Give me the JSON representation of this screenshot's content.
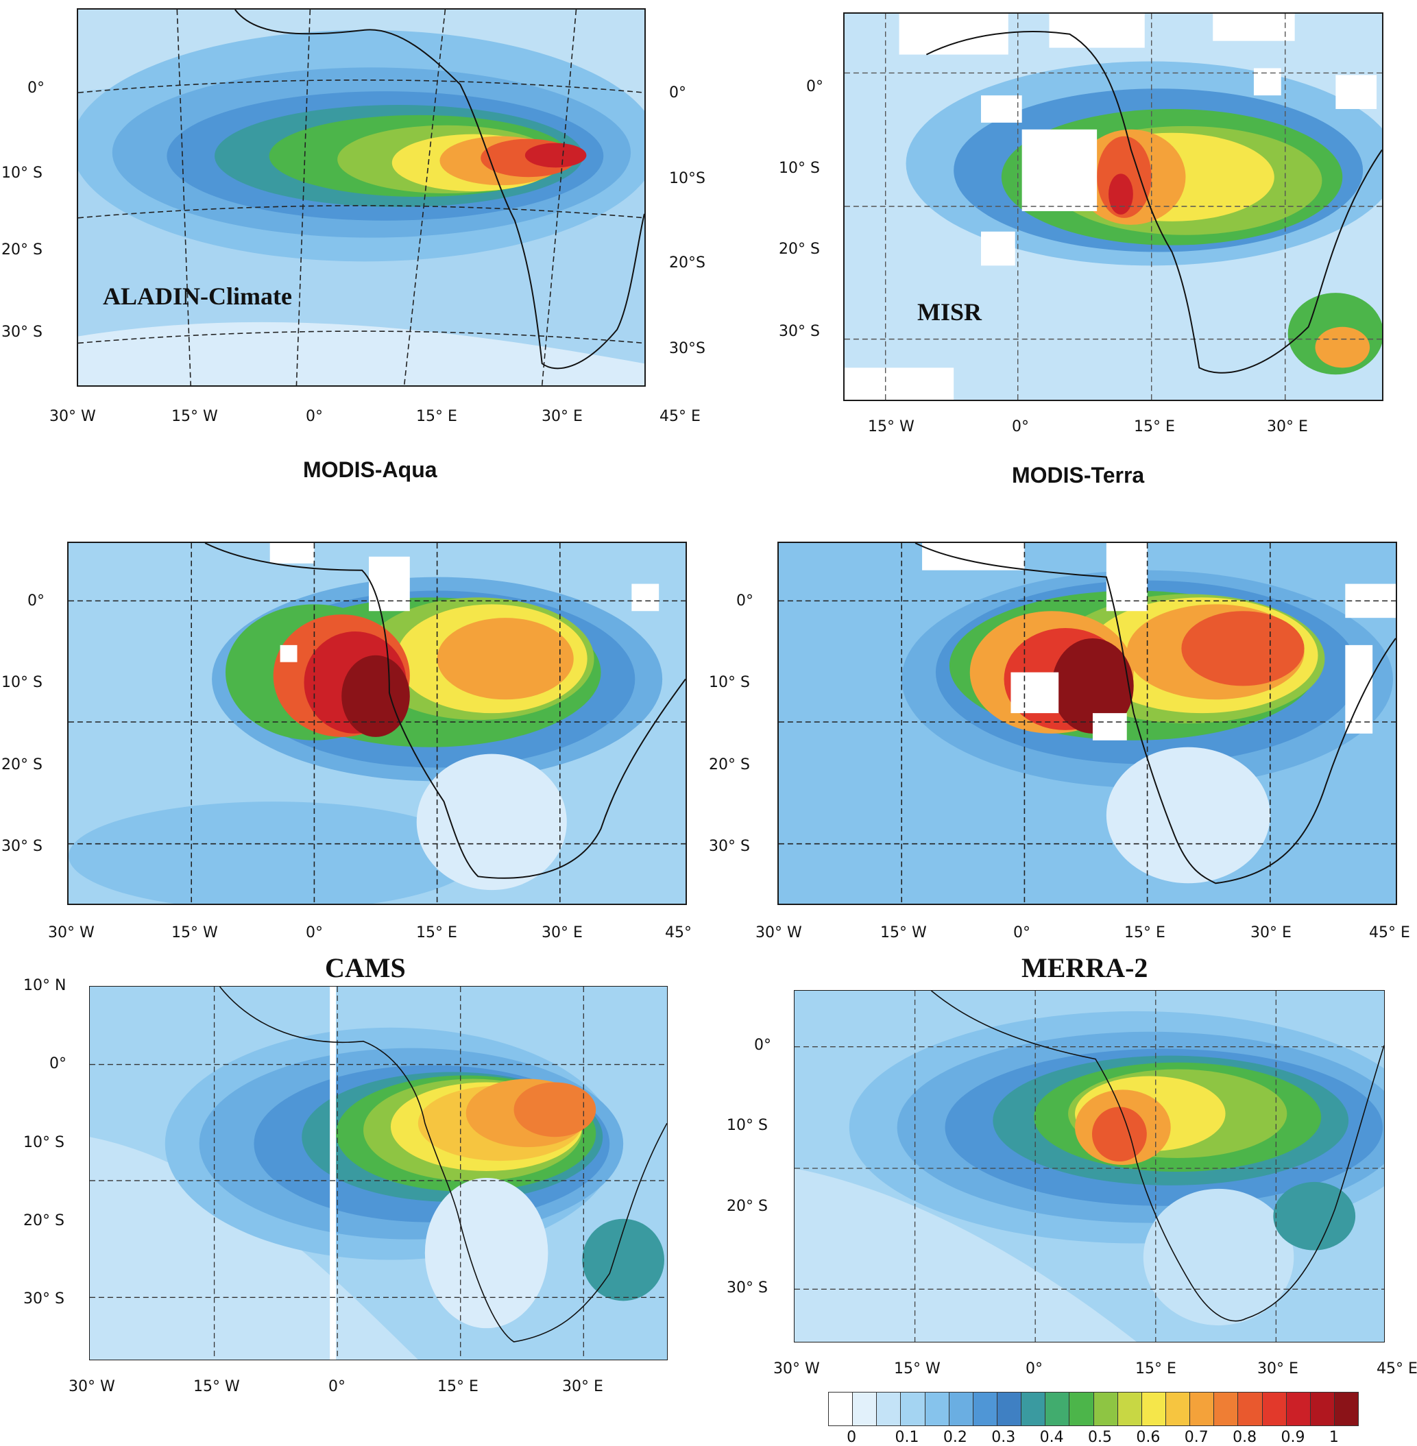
{
  "colors": {
    "ocean_low": "#d9ecfa",
    "ocean_mid": "#9fd0f2",
    "ocean_deep": "#5ea2d8",
    "blue_band": "#3f7fc4",
    "teal": "#3a9e9c",
    "green": "#49b44b",
    "yellow": "#f5e34a",
    "orange": "#f29a3a",
    "red": "#e0362c",
    "dark_red": "#8b1318",
    "missing": "#ffffff"
  },
  "colorbar": {
    "colors": [
      "#ffffff",
      "#e2f1fb",
      "#c4e3f7",
      "#a4d4f2",
      "#86c3ec",
      "#6aaee2",
      "#4f96d6",
      "#3f80c3",
      "#3a9aa0",
      "#41ac6e",
      "#4cb54a",
      "#8ec543",
      "#c8d744",
      "#f5e64a",
      "#f6c540",
      "#f4a23a",
      "#ef7e34",
      "#e9592e",
      "#e2392b",
      "#cc2027",
      "#b1171f",
      "#8b1318"
    ],
    "tick_labels": [
      "0",
      "0.1",
      "0.2",
      "0.3",
      "0.4",
      "0.5",
      "0.6",
      "0.7",
      "0.8",
      "0.9",
      "1"
    ]
  },
  "panels": [
    {
      "id": "aladin",
      "title": "",
      "inmap_label": "ALADIN-Climate",
      "y_labels": [
        "0°",
        "10° S",
        "20° S",
        "30° S"
      ],
      "y_labels_right": [
        "0°",
        "10°S",
        "20°S",
        "30°S"
      ],
      "x_labels": [
        "30° W",
        "15° W",
        "0°",
        "15° E",
        "30° E",
        "45° E"
      ]
    },
    {
      "id": "misr",
      "title": "",
      "inmap_label": "MISR",
      "y_labels": [
        "0°",
        "10° S",
        "20° S",
        "30° S"
      ],
      "x_labels": [
        "15° W",
        "0°",
        "15° E",
        "30° E"
      ]
    },
    {
      "id": "modis_aqua",
      "title": "MODIS-Aqua",
      "y_labels": [
        "0°",
        "10° S",
        "20° S",
        "30° S"
      ],
      "x_labels": [
        "30° W",
        "15° W",
        "0°",
        "15° E",
        "30° E",
        "45°"
      ]
    },
    {
      "id": "modis_terra",
      "title": "MODIS-Terra",
      "y_labels": [
        "0°",
        "10° S",
        "20° S",
        "30° S"
      ],
      "x_labels": [
        "30° W",
        "15° W",
        "0°",
        "15° E",
        "30° E",
        "45° E"
      ]
    },
    {
      "id": "cams",
      "title": "CAMS",
      "y_labels": [
        "10° N",
        "0°",
        "10° S",
        "20° S",
        "30° S"
      ],
      "x_labels": [
        "30° W",
        "15° W",
        "0°",
        "15° E",
        "30° E"
      ]
    },
    {
      "id": "merra2",
      "title": "MERRA-2",
      "y_labels": [
        "0°",
        "10° S",
        "20° S",
        "30° S"
      ],
      "x_labels": [
        "30° W",
        "15° W",
        "0°",
        "15° E",
        "30° E",
        "45° E"
      ]
    }
  ]
}
